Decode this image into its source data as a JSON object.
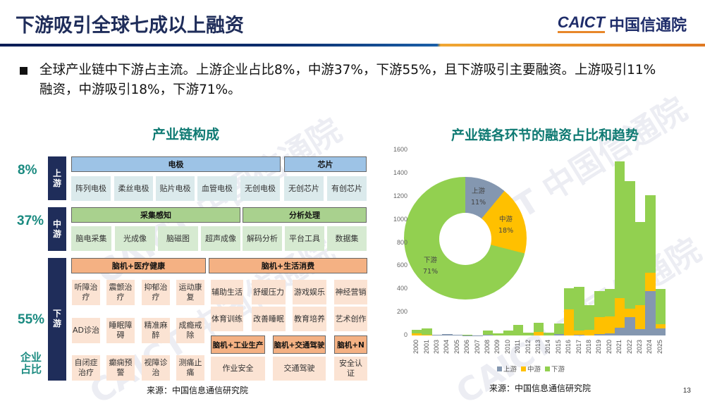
{
  "header": {
    "title": "下游吸引全球七成以上融资",
    "logo_en": "CAICT",
    "logo_cn": "中国信通院"
  },
  "bullet": "全球产业链中下游占主流。上游企业占比8%，中游37%，下游55%，且下游吸引主要融资。上游吸引11%融资，中游吸引18%，下游71%。",
  "left_panel": {
    "title": "产业链构成",
    "caption": "企业占比",
    "source": "来源：中国信息通信研究院",
    "upstream": {
      "pct": "8%",
      "stage": [
        "上",
        "游"
      ],
      "groups": [
        {
          "label": "电极",
          "items": [
            "阵列电极",
            "柔丝电极",
            "贴片电极",
            "血管电极",
            "无创电极"
          ]
        },
        {
          "label": "芯片",
          "items": [
            "无创芯片",
            "有创芯片"
          ]
        }
      ]
    },
    "midstream": {
      "pct": "37%",
      "stage": [
        "中",
        "游"
      ],
      "groups": [
        {
          "label": "采集感知",
          "items": [
            "脑电采集",
            "光成像",
            "脑磁图",
            "超声成像"
          ]
        },
        {
          "label": "分析处理",
          "items": [
            "解码分析",
            "平台工具",
            "数据集"
          ]
        }
      ]
    },
    "downstream": {
      "pct": "55%",
      "stage": [
        "下",
        "游"
      ],
      "medical": {
        "label": "脑机+医疗健康",
        "items": [
          "听障治疗",
          "震颤治疗",
          "抑郁治疗",
          "运动康复",
          "AD诊治",
          "睡眠障碍",
          "精准麻醉",
          "成瘾戒除",
          "自闭症治疗",
          "癫痫预警",
          "视障诊治",
          "测痛止痛"
        ]
      },
      "consumer": {
        "label": "脑机+生活消费",
        "items": [
          "辅助生活",
          "舒缓压力",
          "游戏娱乐",
          "神经营销",
          "体育训练",
          "改善睡眠",
          "教育培养",
          "艺术创作"
        ]
      },
      "industrial": {
        "label": "脑机+工业生产",
        "items": [
          "作业安全"
        ]
      },
      "transport": {
        "label": "脑机+交通驾驶",
        "items": [
          "交通驾驶"
        ]
      },
      "other": {
        "label": "脑机+N",
        "items": [
          "安全认证"
        ]
      }
    }
  },
  "right_panel": {
    "title": "产业链各环节的融资占比和趋势",
    "source": "来源：中国信息通信研究院"
  },
  "page_number": "13",
  "chart_data": [
    {
      "type": "pie",
      "title": "产业链各环节的融资占比",
      "categories": [
        "上游",
        "中游",
        "下游"
      ],
      "values": [
        11,
        18,
        71
      ],
      "labels": [
        "11%",
        "18%",
        "71%"
      ],
      "colors": [
        "#8497b0",
        "#ffc000",
        "#92d050"
      ],
      "donut": true
    },
    {
      "type": "bar",
      "stacked": true,
      "title": "产业链各环节的融资趋势",
      "categories": [
        "2000",
        "2001",
        "2003",
        "2004",
        "2005",
        "2006",
        "2007",
        "2008",
        "2009",
        "2010",
        "2011",
        "2012",
        "2013",
        "2014",
        "2015",
        "2016",
        "2017",
        "2018",
        "2019",
        "2020",
        "2021",
        "2022",
        "2023",
        "2024",
        "2025"
      ],
      "series": [
        {
          "name": "上游",
          "color": "#8497b0",
          "values": [
            0,
            0,
            5,
            10,
            5,
            3,
            2,
            5,
            0,
            0,
            0,
            0,
            0,
            0,
            10,
            0,
            5,
            0,
            15,
            20,
            70,
            160,
            55,
            385,
            60
          ]
        },
        {
          "name": "中游",
          "color": "#ffc000",
          "values": [
            20,
            5,
            0,
            0,
            0,
            0,
            0,
            0,
            0,
            0,
            0,
            0,
            30,
            0,
            0,
            225,
            40,
            50,
            145,
            145,
            250,
            70,
            205,
            155,
            40
          ]
        },
        {
          "name": "下游",
          "color": "#92d050",
          "values": [
            30,
            55,
            0,
            0,
            0,
            5,
            1,
            35,
            20,
            40,
            90,
            25,
            80,
            25,
            95,
            185,
            375,
            210,
            225,
            235,
            1180,
            1105,
            720,
            670,
            300
          ]
        }
      ],
      "xlabel": "",
      "ylabel": "",
      "ylim": [
        0,
        1600
      ],
      "yticks": [
        0,
        200,
        400,
        600,
        800,
        1000,
        1200,
        1400,
        1600
      ],
      "legend": [
        "上游",
        "中游",
        "下游"
      ],
      "legend_position": "bottom",
      "grid": false
    }
  ]
}
